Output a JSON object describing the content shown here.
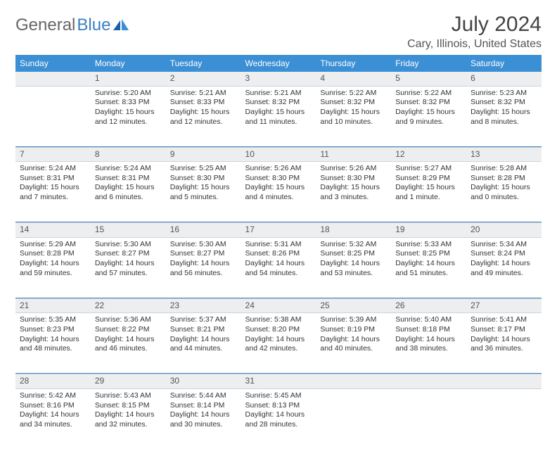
{
  "brand": {
    "word1": "General",
    "word2": "Blue"
  },
  "title": "July 2024",
  "location": "Cary, Illinois, United States",
  "colors": {
    "header_bg": "#3b8fd4",
    "accent": "#3b7fc4",
    "daynum_bg": "#eceef0",
    "text": "#333333"
  },
  "weekdays": [
    "Sunday",
    "Monday",
    "Tuesday",
    "Wednesday",
    "Thursday",
    "Friday",
    "Saturday"
  ],
  "weeks": [
    [
      null,
      {
        "n": "1",
        "sr": "5:20 AM",
        "ss": "8:33 PM",
        "dl": "15 hours and 12 minutes."
      },
      {
        "n": "2",
        "sr": "5:21 AM",
        "ss": "8:33 PM",
        "dl": "15 hours and 12 minutes."
      },
      {
        "n": "3",
        "sr": "5:21 AM",
        "ss": "8:32 PM",
        "dl": "15 hours and 11 minutes."
      },
      {
        "n": "4",
        "sr": "5:22 AM",
        "ss": "8:32 PM",
        "dl": "15 hours and 10 minutes."
      },
      {
        "n": "5",
        "sr": "5:22 AM",
        "ss": "8:32 PM",
        "dl": "15 hours and 9 minutes."
      },
      {
        "n": "6",
        "sr": "5:23 AM",
        "ss": "8:32 PM",
        "dl": "15 hours and 8 minutes."
      }
    ],
    [
      {
        "n": "7",
        "sr": "5:24 AM",
        "ss": "8:31 PM",
        "dl": "15 hours and 7 minutes."
      },
      {
        "n": "8",
        "sr": "5:24 AM",
        "ss": "8:31 PM",
        "dl": "15 hours and 6 minutes."
      },
      {
        "n": "9",
        "sr": "5:25 AM",
        "ss": "8:30 PM",
        "dl": "15 hours and 5 minutes."
      },
      {
        "n": "10",
        "sr": "5:26 AM",
        "ss": "8:30 PM",
        "dl": "15 hours and 4 minutes."
      },
      {
        "n": "11",
        "sr": "5:26 AM",
        "ss": "8:30 PM",
        "dl": "15 hours and 3 minutes."
      },
      {
        "n": "12",
        "sr": "5:27 AM",
        "ss": "8:29 PM",
        "dl": "15 hours and 1 minute."
      },
      {
        "n": "13",
        "sr": "5:28 AM",
        "ss": "8:28 PM",
        "dl": "15 hours and 0 minutes."
      }
    ],
    [
      {
        "n": "14",
        "sr": "5:29 AM",
        "ss": "8:28 PM",
        "dl": "14 hours and 59 minutes."
      },
      {
        "n": "15",
        "sr": "5:30 AM",
        "ss": "8:27 PM",
        "dl": "14 hours and 57 minutes."
      },
      {
        "n": "16",
        "sr": "5:30 AM",
        "ss": "8:27 PM",
        "dl": "14 hours and 56 minutes."
      },
      {
        "n": "17",
        "sr": "5:31 AM",
        "ss": "8:26 PM",
        "dl": "14 hours and 54 minutes."
      },
      {
        "n": "18",
        "sr": "5:32 AM",
        "ss": "8:25 PM",
        "dl": "14 hours and 53 minutes."
      },
      {
        "n": "19",
        "sr": "5:33 AM",
        "ss": "8:25 PM",
        "dl": "14 hours and 51 minutes."
      },
      {
        "n": "20",
        "sr": "5:34 AM",
        "ss": "8:24 PM",
        "dl": "14 hours and 49 minutes."
      }
    ],
    [
      {
        "n": "21",
        "sr": "5:35 AM",
        "ss": "8:23 PM",
        "dl": "14 hours and 48 minutes."
      },
      {
        "n": "22",
        "sr": "5:36 AM",
        "ss": "8:22 PM",
        "dl": "14 hours and 46 minutes."
      },
      {
        "n": "23",
        "sr": "5:37 AM",
        "ss": "8:21 PM",
        "dl": "14 hours and 44 minutes."
      },
      {
        "n": "24",
        "sr": "5:38 AM",
        "ss": "8:20 PM",
        "dl": "14 hours and 42 minutes."
      },
      {
        "n": "25",
        "sr": "5:39 AM",
        "ss": "8:19 PM",
        "dl": "14 hours and 40 minutes."
      },
      {
        "n": "26",
        "sr": "5:40 AM",
        "ss": "8:18 PM",
        "dl": "14 hours and 38 minutes."
      },
      {
        "n": "27",
        "sr": "5:41 AM",
        "ss": "8:17 PM",
        "dl": "14 hours and 36 minutes."
      }
    ],
    [
      {
        "n": "28",
        "sr": "5:42 AM",
        "ss": "8:16 PM",
        "dl": "14 hours and 34 minutes."
      },
      {
        "n": "29",
        "sr": "5:43 AM",
        "ss": "8:15 PM",
        "dl": "14 hours and 32 minutes."
      },
      {
        "n": "30",
        "sr": "5:44 AM",
        "ss": "8:14 PM",
        "dl": "14 hours and 30 minutes."
      },
      {
        "n": "31",
        "sr": "5:45 AM",
        "ss": "8:13 PM",
        "dl": "14 hours and 28 minutes."
      },
      null,
      null,
      null
    ]
  ],
  "labels": {
    "sunrise": "Sunrise:",
    "sunset": "Sunset:",
    "daylight": "Daylight:"
  }
}
